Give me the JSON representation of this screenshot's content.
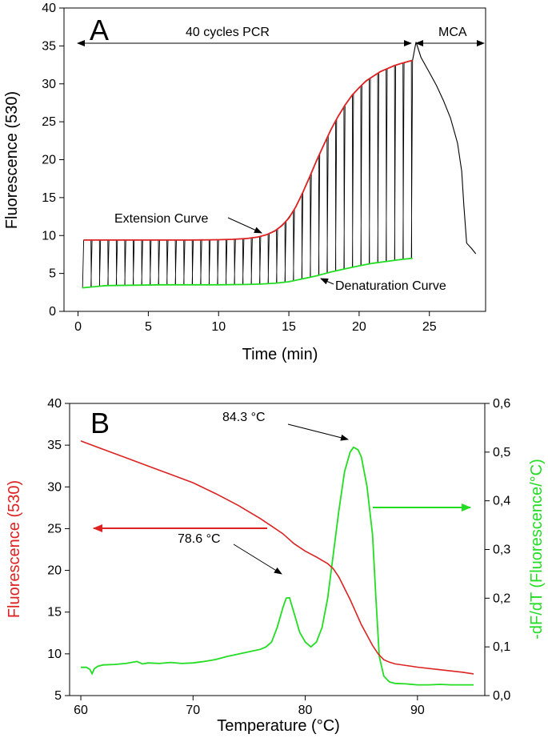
{
  "chart_data": [
    {
      "type": "line",
      "panel_label": "A",
      "xlabel": "Time (min)",
      "ylabel": "Fluorescence (530)",
      "xlim": [
        -1,
        29
      ],
      "ylim": [
        0,
        40
      ],
      "x_ticks": [
        0,
        5,
        10,
        15,
        20,
        25
      ],
      "y_ticks": [
        0,
        5,
        10,
        15,
        20,
        25,
        30,
        35,
        40
      ],
      "grid": false,
      "annotations": {
        "pcr_span": "40 cycles PCR",
        "mca_span": "MCA",
        "extension_label": "Extension Curve",
        "denaturation_label": "Denaturation Curve"
      },
      "colors": {
        "extension": "#dd2222",
        "denaturation": "#22dd22",
        "cycles": "#000000"
      },
      "series": [
        {
          "role": "extension",
          "x": [
            0.4,
            2,
            4,
            6,
            8,
            10,
            11,
            12,
            12.8,
            13.4,
            14,
            14.5,
            15,
            15.5,
            16,
            16.5,
            17,
            17.5,
            18,
            18.5,
            19,
            19.5,
            20,
            20.5,
            21,
            21.5,
            22,
            22.5,
            23,
            23.5,
            23.8
          ],
          "y": [
            9.4,
            9.4,
            9.4,
            9.4,
            9.4,
            9.45,
            9.5,
            9.6,
            9.8,
            10.1,
            10.6,
            11.3,
            12.3,
            13.8,
            15.7,
            17.8,
            20.0,
            22.0,
            24.0,
            25.7,
            27.2,
            28.5,
            29.5,
            30.4,
            31.0,
            31.6,
            32.0,
            32.4,
            32.7,
            32.95,
            33.1
          ]
        },
        {
          "role": "denaturation",
          "x": [
            0.3,
            2,
            4,
            6,
            8,
            10,
            12,
            13,
            14,
            15,
            16,
            17,
            18,
            19,
            20,
            21,
            22,
            23,
            23.8
          ],
          "y": [
            3.1,
            3.4,
            3.45,
            3.5,
            3.5,
            3.5,
            3.55,
            3.6,
            3.7,
            3.9,
            4.3,
            4.7,
            5.2,
            5.6,
            6.0,
            6.35,
            6.6,
            6.85,
            7.0
          ]
        },
        {
          "role": "mca",
          "x": [
            23.8,
            24.05,
            24.4,
            25,
            25.5,
            26,
            26.5,
            27,
            27.3,
            27.45,
            27.65,
            28,
            28.3
          ],
          "y": [
            33.1,
            35.5,
            33.5,
            31.5,
            29.8,
            27.8,
            25.5,
            22.2,
            18.5,
            14.0,
            9.0,
            8.3,
            7.6
          ]
        }
      ],
      "cycles": 40
    },
    {
      "type": "line",
      "panel_label": "B",
      "xlabel": "Temperature (°C)",
      "ylabel": "Fluorescence (530)",
      "y2label": "-dF/dT (Fluorescence/°C)",
      "xlim": [
        59,
        96
      ],
      "ylim": [
        5,
        40
      ],
      "y2lim": [
        0,
        0.6
      ],
      "x_ticks": [
        60,
        70,
        80,
        90
      ],
      "y_ticks": [
        5,
        10,
        15,
        20,
        25,
        30,
        35,
        40
      ],
      "y2_ticks": [
        "0,0",
        "0,1",
        "0,2",
        "0,3",
        "0,4",
        "0,5",
        "0,6"
      ],
      "grid": false,
      "annotations": {
        "peak_minor": "78.6 °C",
        "peak_major": "84.3 °C"
      },
      "colors": {
        "fluorescence": "#dd2222",
        "derivative": "#22dd22"
      },
      "series": [
        {
          "role": "fluorescence",
          "axis": "left",
          "x": [
            60,
            62,
            64,
            66,
            68,
            70,
            72,
            74,
            76,
            77,
            78,
            79,
            80,
            81,
            82,
            82.5,
            83,
            84,
            85,
            86,
            86.5,
            87,
            87.5,
            88,
            90,
            92,
            94,
            95
          ],
          "y": [
            35.5,
            34.5,
            33.5,
            32.5,
            31.5,
            30.5,
            29.2,
            27.8,
            26.2,
            25.3,
            24.4,
            23.2,
            22.3,
            21.6,
            20.8,
            20.2,
            19.2,
            16.5,
            13.5,
            11.0,
            10.0,
            9.3,
            9.0,
            8.8,
            8.4,
            8.1,
            7.8,
            7.6
          ]
        },
        {
          "role": "derivative",
          "axis": "right",
          "x": [
            60,
            60.5,
            60.8,
            61.0,
            61.2,
            61.5,
            62,
            63,
            64,
            65,
            65.5,
            66,
            67,
            68,
            69,
            70,
            71,
            72,
            73,
            74,
            75,
            76,
            76.5,
            77,
            77.5,
            78,
            78.3,
            78.6,
            79,
            79.5,
            80,
            80.5,
            81,
            81.5,
            82,
            82.5,
            83,
            83.5,
            84,
            84.3,
            84.7,
            85,
            85.5,
            86,
            86.3,
            86.6,
            87,
            87.5,
            88,
            89,
            90,
            91,
            92,
            93,
            94,
            95
          ],
          "y": [
            0.058,
            0.058,
            0.054,
            0.045,
            0.055,
            0.06,
            0.063,
            0.064,
            0.066,
            0.07,
            0.065,
            0.067,
            0.066,
            0.068,
            0.066,
            0.067,
            0.07,
            0.074,
            0.08,
            0.085,
            0.09,
            0.095,
            0.1,
            0.11,
            0.14,
            0.18,
            0.2,
            0.201,
            0.17,
            0.13,
            0.11,
            0.1,
            0.11,
            0.14,
            0.2,
            0.29,
            0.38,
            0.46,
            0.5,
            0.51,
            0.505,
            0.49,
            0.43,
            0.33,
            0.2,
            0.08,
            0.04,
            0.028,
            0.025,
            0.024,
            0.022,
            0.022,
            0.023,
            0.022,
            0.022,
            0.022
          ]
        }
      ]
    }
  ]
}
